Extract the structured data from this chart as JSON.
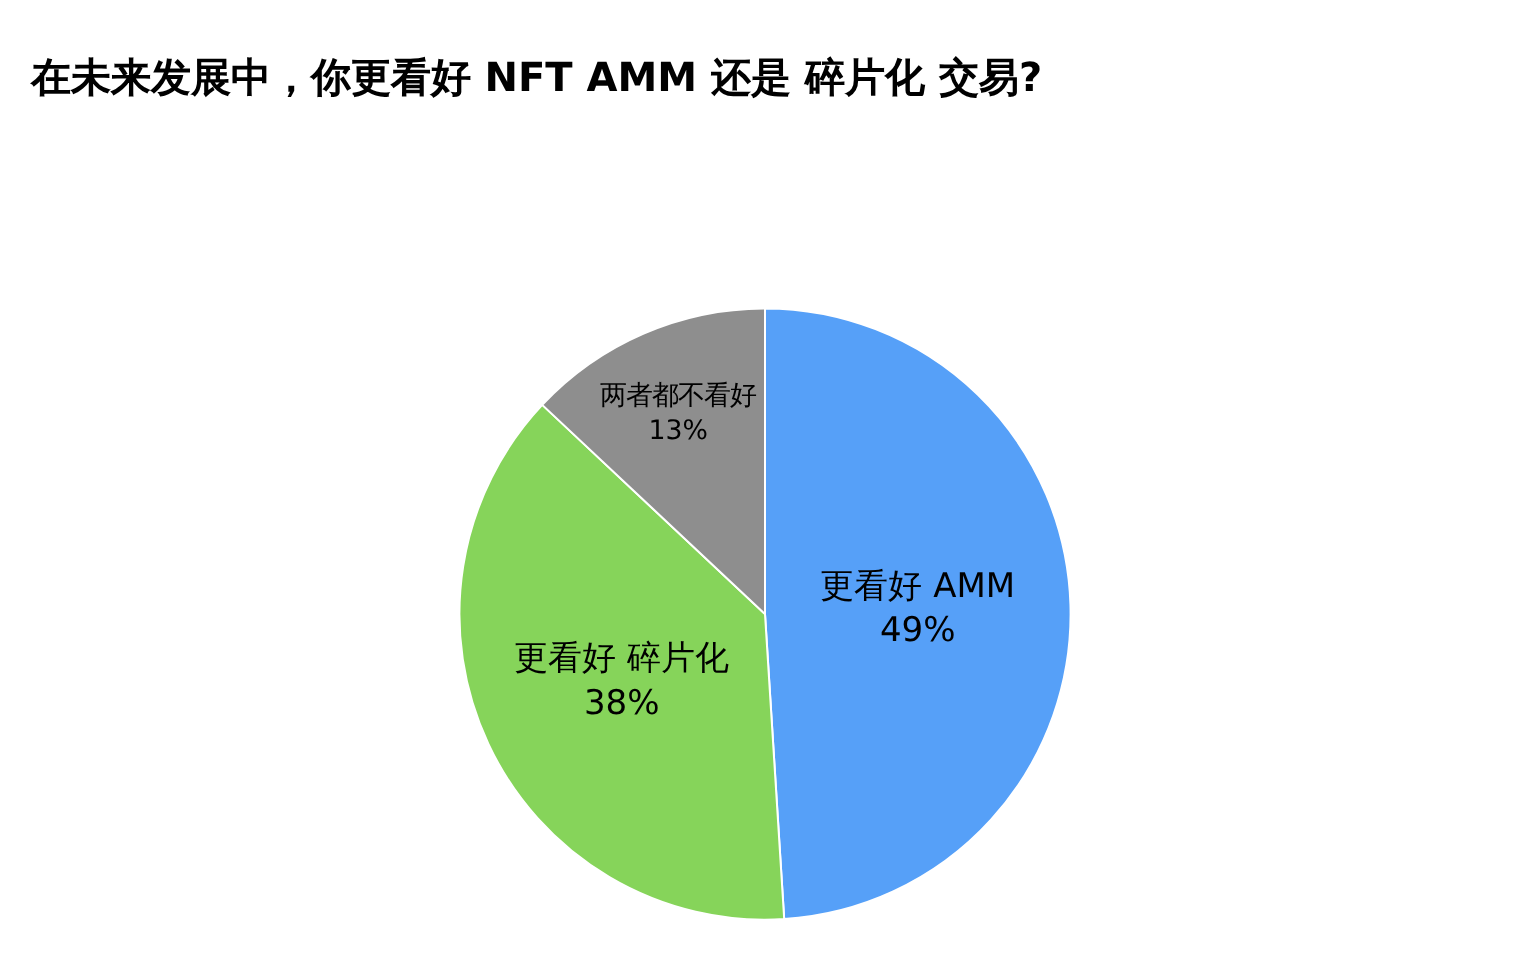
{
  "chart_data": {
    "type": "pie",
    "title": "在未来发展中，你更看好 NFT AMM 还是 碎片化 交易?",
    "categories": [
      "更看好 AMM",
      "更看好 碎片化",
      "两者都不看好"
    ],
    "values": [
      49,
      38,
      13
    ],
    "value_labels": [
      "49%",
      "38%",
      "13%"
    ],
    "colors": [
      "#56a0f8",
      "#86d45a",
      "#8e8e8e"
    ],
    "legend": false
  }
}
